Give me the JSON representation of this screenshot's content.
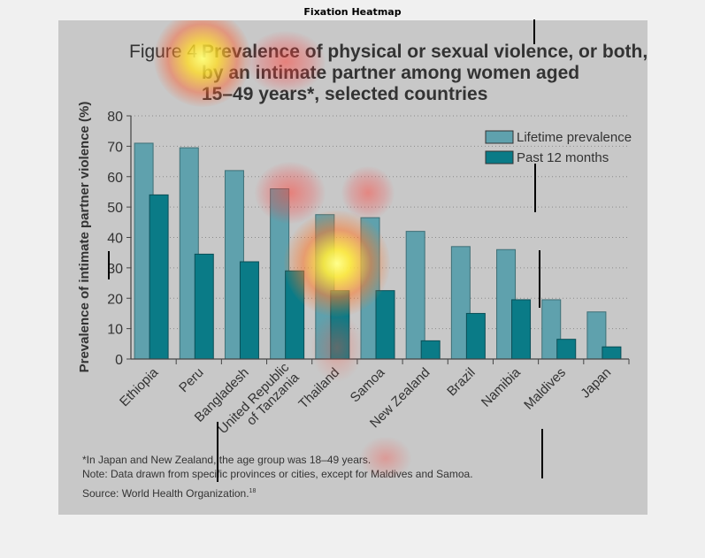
{
  "window": {
    "title": "Fixation Heatmap"
  },
  "figure": {
    "label": "Figure 4",
    "title_lines": [
      "Prevalence of physical or sexual violence, or both,",
      "by an intimate partner among women aged",
      "15–49 years*, selected countries"
    ],
    "footnotes": [
      "*In Japan and New Zealand, the age group was 18–49 years.",
      "Note: Data drawn from specific provinces or cities, except for Maldives and Samoa.",
      "Source: World Health Organization."
    ],
    "source_superscript": "18"
  },
  "chart_data": {
    "type": "bar",
    "title": "Figure 4 Prevalence of physical or sexual violence, or both, by an intimate partner among women aged 15–49 years*, selected countries",
    "ylabel": "Prevalence of intimate partner violence (%)",
    "xlabel": "",
    "ylim": [
      0,
      80
    ],
    "yticks": [
      0,
      10,
      20,
      30,
      40,
      50,
      60,
      70,
      80
    ],
    "grid": "horizontal dotted",
    "legend_position": "top-right",
    "categories": [
      "Ethiopia",
      "Peru",
      "Bangladesh",
      "United Republic of Tanzania",
      "Thailand",
      "Samoa",
      "New Zealand",
      "Brazil",
      "Namibia",
      "Maldives",
      "Japan"
    ],
    "category_label_lines": [
      [
        "Ethiopia"
      ],
      [
        "Peru"
      ],
      [
        "Bangladesh"
      ],
      [
        "United Republic",
        "of Tanzania"
      ],
      [
        "Thailand"
      ],
      [
        "Samoa"
      ],
      [
        "New Zealand"
      ],
      [
        "Brazil"
      ],
      [
        "Namibia"
      ],
      [
        "Maldives"
      ],
      [
        "Japan"
      ]
    ],
    "series": [
      {
        "name": "Lifetime prevalence",
        "color": "#5fa1ad",
        "values": [
          71,
          69.5,
          62,
          56,
          47.5,
          46.5,
          42,
          37,
          36,
          19.5,
          15.5
        ]
      },
      {
        "name": "Past 12 months",
        "color": "#0a7b87",
        "values": [
          54,
          34.5,
          32,
          29,
          22.5,
          22.5,
          6,
          15,
          19.5,
          6.5,
          4
        ]
      }
    ]
  },
  "heatmap": {
    "colors": {
      "hot": "#ffff50",
      "mid": "#ff6a2a",
      "cool": "#ff4040"
    }
  }
}
